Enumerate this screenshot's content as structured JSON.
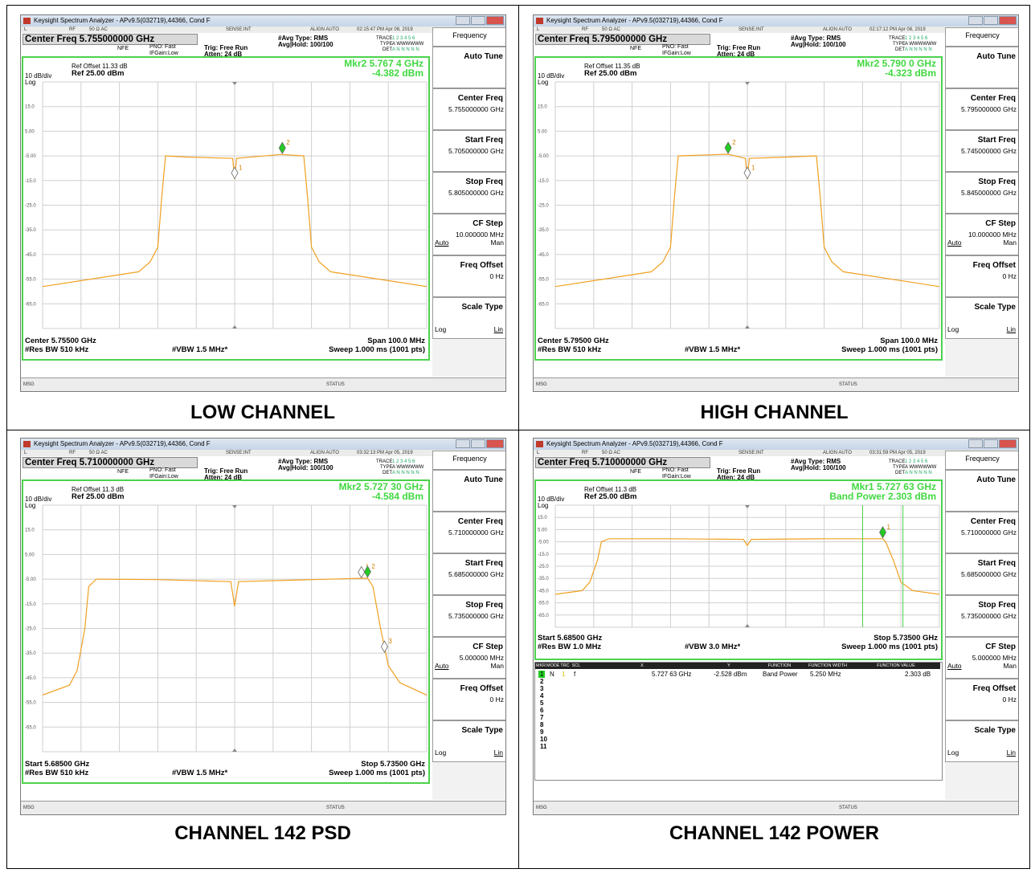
{
  "captions": [
    "LOW CHANNEL",
    "HIGH CHANNEL",
    "CHANNEL 142 PSD",
    "CHANNEL 142 POWER"
  ],
  "common": {
    "title_bar": "Keysight Spectrum Analyzer - APv9.5(032719),44366, Cond F",
    "status_L": "L",
    "status_RF": "RF",
    "status_imp": "50 Ω  AC",
    "status_sense": "SENSE:INT",
    "status_align": "ALIGN AUTO",
    "nfe": "NFE",
    "pno": "PNO: Fast",
    "ifgain": "IFGain:Low",
    "trig": "Trig: Free Run",
    "atten": "Atten: 24 dB",
    "avg_type": "#Avg Type: RMS",
    "avg_hold": "Avg|Hold: 100/100",
    "trace_lbl": "TRACE",
    "type_lbl": "TYPE",
    "det_lbl": "DET",
    "trace_nums": "1 2 3 4 5 6",
    "type_vals": "A WWWWWW",
    "det_vals": "A N N N N N",
    "scale": "10 dB/div",
    "log": "Log",
    "ref": "Ref 25.00 dBm",
    "msg": "MSG",
    "status": "STATUS",
    "sk_frequency": "Frequency",
    "sk_autotune": "Auto Tune",
    "sk_centerfreq": "Center Freq",
    "sk_startfreq": "Start Freq",
    "sk_stopfreq": "Stop Freq",
    "sk_cfstep": "CF Step",
    "sk_auto": "Auto",
    "sk_man": "Man",
    "sk_freqoffset": "Freq Offset",
    "sk_freqoffset_val": "0 Hz",
    "sk_scaletype": "Scale Type",
    "sk_log": "Log",
    "sk_lin": "Lin",
    "y_ticks": [
      "15.0",
      "5.00",
      "-5.00",
      "-15.0",
      "-25.0",
      "-35.0",
      "-45.0",
      "-55.0",
      "-65.0"
    ]
  },
  "panels": [
    {
      "timestamp": "02:15:47 PM Apr 08, 2019",
      "center_freq_box": "Center Freq 5.755000000 GHz",
      "ref_offset": "Ref Offset 11.33 dB",
      "marker_line1": "Mkr2 5.767 4 GHz",
      "marker_line2": "-4.382 dBm",
      "bottom_left1": "Center 5.75500 GHz",
      "bottom_left2": "#Res BW 510 kHz",
      "vbw": "#VBW 1.5 MHz*",
      "bottom_right1": "Span 100.0 MHz",
      "bottom_right2": "Sweep  1.000 ms (1001 pts)",
      "center_freq_val": "5.755000000 GHz",
      "start_freq_val": "5.705000000 GHz",
      "stop_freq_val": "5.805000000 GHz",
      "cf_step_val": "10.000000 MHz"
    },
    {
      "timestamp": "02:17:12 PM Apr 08, 2019",
      "center_freq_box": "Center Freq 5.795000000 GHz",
      "ref_offset": "Ref Offset 11.35 dB",
      "marker_line1": "Mkr2 5.790 0 GHz",
      "marker_line2": "-4.323 dBm",
      "bottom_left1": "Center 5.79500 GHz",
      "bottom_left2": "#Res BW 510 kHz",
      "vbw": "#VBW 1.5 MHz*",
      "bottom_right1": "Span 100.0 MHz",
      "bottom_right2": "Sweep  1.000 ms (1001 pts)",
      "center_freq_val": "5.795000000 GHz",
      "start_freq_val": "5.745000000 GHz",
      "stop_freq_val": "5.845000000 GHz",
      "cf_step_val": "10.000000 MHz"
    },
    {
      "timestamp": "03:32:13 PM Apr 05, 2019",
      "center_freq_box": "Center Freq 5.710000000 GHz",
      "ref_offset": "Ref Offset 11.3 dB",
      "marker_line1": "Mkr2 5.727 30 GHz",
      "marker_line2": "-4.584 dBm",
      "bottom_left1": "Start 5.68500 GHz",
      "bottom_left2": "#Res BW 510 kHz",
      "vbw": "#VBW 1.5 MHz*",
      "bottom_right1": "Stop 5.73500 GHz",
      "bottom_right2": "Sweep  1.000 ms (1001 pts)",
      "center_freq_val": "5.710000000 GHz",
      "start_freq_val": "5.685000000 GHz",
      "stop_freq_val": "5.735000000 GHz",
      "cf_step_val": "5.000000 MHz"
    },
    {
      "timestamp": "03:31:59 PM Apr 05, 2019",
      "center_freq_box": "Center Freq 5.710000000 GHz",
      "ref_offset": "Ref Offset 11.3 dB",
      "marker_line1": "Mkr1 5.727 63 GHz",
      "marker_line2": "Band Power 2.303 dBm",
      "bottom_left1": "Start 5.68500 GHz",
      "bottom_left2": "#Res BW 1.0 MHz",
      "vbw": "#VBW 3.0 MHz*",
      "bottom_right1": "Stop 5.73500 GHz",
      "bottom_right2": "Sweep  1.000 ms (1001 pts)",
      "center_freq_val": "5.710000000 GHz",
      "start_freq_val": "5.685000000 GHz",
      "stop_freq_val": "5.735000000 GHz",
      "cf_step_val": "5.000000 MHz",
      "marker_table": {
        "headers": [
          "MKR",
          "MODE",
          "TRC",
          "SCL",
          "X",
          "Y",
          "FUNCTION",
          "FUNCTION WIDTH",
          "FUNCTION VALUE"
        ],
        "row1": [
          "1",
          "N",
          "1",
          "f",
          "5.727 63 GHz",
          "-2.528 dBm",
          "Band Power",
          "5.250 MHz",
          "2.303 dB"
        ],
        "row_numbers": [
          "2",
          "3",
          "4",
          "5",
          "6",
          "7",
          "8",
          "9",
          "10",
          "11"
        ]
      }
    }
  ],
  "chart_data": [
    {
      "type": "line",
      "title": "LOW CHANNEL",
      "xlabel": "",
      "ylabel": "",
      "x_unit": "GHz",
      "y_unit": "dBm",
      "xlim": [
        5.705,
        5.805
      ],
      "ylim": [
        -75,
        25
      ],
      "grid": true,
      "series": [
        {
          "x": [
            5.705,
            5.73,
            5.733,
            5.735,
            5.736,
            5.737,
            5.743,
            5.7545,
            5.755,
            5.7555,
            5.767,
            5.773,
            5.774,
            5.775,
            5.777,
            5.78,
            5.805
          ],
          "y": [
            -58,
            -52,
            -48,
            -42,
            -22,
            -5,
            -5.5,
            -6,
            -14.5,
            -6,
            -4.4,
            -5,
            -22,
            -42,
            -48,
            -52,
            -58
          ]
        }
      ],
      "markers": [
        {
          "label": "1",
          "x": 5.755,
          "y": -14.5
        },
        {
          "label": "2",
          "x": 5.7674,
          "y": -4.382
        }
      ]
    },
    {
      "type": "line",
      "title": "HIGH CHANNEL",
      "xlabel": "",
      "ylabel": "",
      "x_unit": "GHz",
      "y_unit": "dBm",
      "xlim": [
        5.745,
        5.845
      ],
      "ylim": [
        -75,
        25
      ],
      "grid": true,
      "series": [
        {
          "x": [
            5.745,
            5.77,
            5.773,
            5.775,
            5.776,
            5.777,
            5.79,
            5.7945,
            5.795,
            5.7955,
            5.805,
            5.813,
            5.814,
            5.815,
            5.817,
            5.82,
            5.845
          ],
          "y": [
            -58,
            -52,
            -48,
            -42,
            -22,
            -5,
            -4.3,
            -6,
            -14.5,
            -6,
            -5.5,
            -5,
            -22,
            -42,
            -48,
            -52,
            -58
          ]
        }
      ],
      "markers": [
        {
          "label": "1",
          "x": 5.795,
          "y": -14.5
        },
        {
          "label": "2",
          "x": 5.79,
          "y": -4.323
        }
      ]
    },
    {
      "type": "line",
      "title": "CHANNEL 142 PSD",
      "xlabel": "",
      "ylabel": "",
      "x_unit": "GHz",
      "y_unit": "dBm",
      "xlim": [
        5.685,
        5.735
      ],
      "ylim": [
        -75,
        25
      ],
      "grid": true,
      "series": [
        {
          "x": [
            5.685,
            5.6885,
            5.6895,
            5.6905,
            5.691,
            5.692,
            5.7,
            5.7095,
            5.71,
            5.7105,
            5.72,
            5.7273,
            5.728,
            5.729,
            5.73,
            5.7315,
            5.735
          ],
          "y": [
            -52,
            -48,
            -42,
            -25,
            -8,
            -5,
            -5.2,
            -6,
            -16,
            -6,
            -5.2,
            -4.6,
            -8,
            -25,
            -40,
            -47,
            -52
          ]
        }
      ],
      "markers": [
        {
          "label": "1",
          "x": 5.7265,
          "y": -4.8
        },
        {
          "label": "2",
          "x": 5.7273,
          "y": -4.584
        },
        {
          "label": "3",
          "x": 5.7295,
          "y": -35
        }
      ]
    },
    {
      "type": "line",
      "title": "CHANNEL 142 POWER",
      "xlabel": "",
      "ylabel": "",
      "x_unit": "GHz",
      "y_unit": "dBm",
      "xlim": [
        5.685,
        5.735
      ],
      "ylim": [
        -75,
        25
      ],
      "grid": true,
      "series": [
        {
          "x": [
            5.685,
            5.6885,
            5.6895,
            5.6905,
            5.691,
            5.692,
            5.7,
            5.7095,
            5.71,
            5.7105,
            5.72,
            5.7276,
            5.728,
            5.729,
            5.73,
            5.7315,
            5.735
          ],
          "y": [
            -48,
            -45,
            -38,
            -20,
            -5,
            -2.5,
            -2.5,
            -3,
            -8,
            -3,
            -2.5,
            -2.5,
            -5,
            -20,
            -38,
            -45,
            -48
          ]
        }
      ],
      "markers": [
        {
          "label": "1",
          "x": 5.72763,
          "y": -2.528
        }
      ],
      "band_power": {
        "center_ghz": 5.72763,
        "width_mhz": 5.25,
        "value_dbm": 2.303
      }
    }
  ]
}
